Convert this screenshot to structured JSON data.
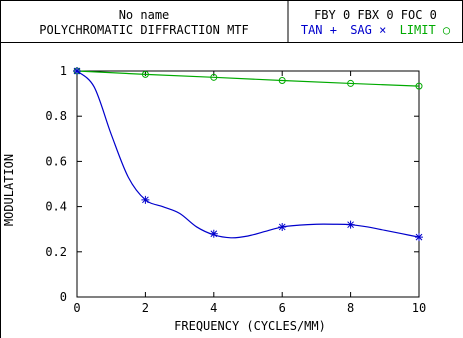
{
  "header": {
    "title_line1": "No name",
    "title_line2": "POLYCHROMATIC DIFFRACTION MTF",
    "params": "FBY 0 FBX 0 FOC 0",
    "legend": {
      "tan": "TAN +",
      "sag": "SAG ×",
      "limit": "LIMIT ○"
    }
  },
  "chart_data": {
    "type": "line",
    "xlabel": "FREQUENCY (CYCLES/MM)",
    "ylabel": "MODULATION",
    "xlim": [
      0,
      10
    ],
    "ylim": [
      0,
      1
    ],
    "xticks": [
      0,
      2,
      4,
      6,
      8,
      10
    ],
    "yticks": [
      0,
      0.2,
      0.4,
      0.6,
      0.8,
      1
    ],
    "grid": false,
    "series": [
      {
        "name": "TAN",
        "color": "#0000cc",
        "marker": "plus",
        "x": [
          0,
          2,
          4,
          6,
          8,
          10
        ],
        "y": [
          1.0,
          0.43,
          0.28,
          0.31,
          0.32,
          0.265
        ]
      },
      {
        "name": "SAG",
        "color": "#0000cc",
        "marker": "cross",
        "x": [
          0,
          2,
          4,
          6,
          8,
          10
        ],
        "y": [
          1.0,
          0.43,
          0.28,
          0.31,
          0.32,
          0.265
        ]
      },
      {
        "name": "LIMIT",
        "color": "#00aa00",
        "marker": "circle",
        "x": [
          0,
          2,
          4,
          6,
          8,
          10
        ],
        "y": [
          1.0,
          0.985,
          0.972,
          0.958,
          0.945,
          0.933
        ]
      }
    ],
    "curve_smooth_points": {
      "TAN": {
        "x": [
          0,
          0.5,
          1,
          1.5,
          2,
          2.5,
          3,
          3.5,
          4,
          4.5,
          5,
          5.5,
          6,
          6.5,
          7,
          7.5,
          8,
          8.5,
          9,
          9.5,
          10
        ],
        "y": [
          1.0,
          0.93,
          0.72,
          0.53,
          0.43,
          0.4,
          0.37,
          0.31,
          0.275,
          0.262,
          0.27,
          0.29,
          0.31,
          0.318,
          0.322,
          0.322,
          0.32,
          0.31,
          0.295,
          0.28,
          0.265
        ]
      }
    }
  }
}
